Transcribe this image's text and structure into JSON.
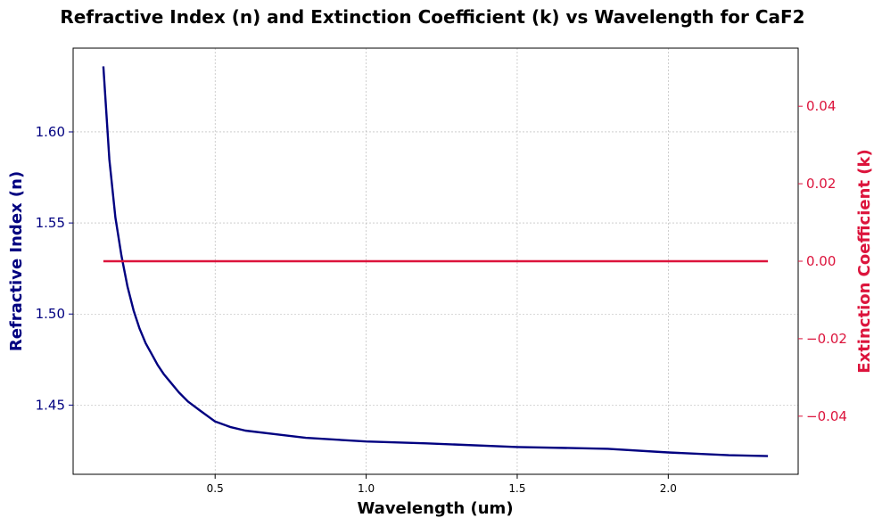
{
  "chart_data": {
    "type": "line",
    "title": "Refractive Index (n) and Extinction Coefficient (k) vs Wavelength for CaF2",
    "xlabel": "Wavelength (um)",
    "ylabel": "Refractive Index (n)",
    "ylabel_right": "Extinction Coefficient (k)",
    "xlim": [
      0.03,
      2.43
    ],
    "ylim": [
      1.412,
      1.646
    ],
    "ylim_right": [
      -0.055,
      0.055
    ],
    "x_ticks": [
      0.5,
      1.0,
      1.5,
      2.0
    ],
    "x_tick_labels": [
      "0.5",
      "1.0",
      "1.5",
      "2.0"
    ],
    "y_ticks": [
      1.45,
      1.5,
      1.55,
      1.6
    ],
    "y_tick_labels": [
      "1.45",
      "1.50",
      "1.55",
      "1.60"
    ],
    "y_ticks_right": [
      -0.04,
      -0.02,
      0.0,
      0.02,
      0.04
    ],
    "y_tick_labels_right": [
      "−0.04",
      "−0.02",
      "0.00",
      "0.02",
      "0.04"
    ],
    "grid": true,
    "colors": {
      "n": "#000080",
      "k": "#dc143c"
    },
    "series": [
      {
        "axis": "left",
        "x": [
          0.13,
          0.15,
          0.17,
          0.19,
          0.21,
          0.23,
          0.25,
          0.27,
          0.29,
          0.31,
          0.33,
          0.35,
          0.38,
          0.41,
          0.45,
          0.5,
          0.55,
          0.6,
          0.7,
          0.8,
          1.0,
          1.2,
          1.5,
          1.8,
          2.0,
          2.2,
          2.33
        ],
        "values": [
          1.636,
          1.585,
          1.553,
          1.532,
          1.515,
          1.502,
          1.492,
          1.484,
          1.478,
          1.472,
          1.467,
          1.463,
          1.457,
          1.452,
          1.447,
          1.441,
          1.438,
          1.436,
          1.434,
          1.432,
          1.43,
          1.429,
          1.427,
          1.426,
          1.424,
          1.4225,
          1.422
        ]
      },
      {
        "axis": "right",
        "x": [
          0.13,
          2.33
        ],
        "values": [
          0.0,
          0.0
        ]
      }
    ]
  }
}
